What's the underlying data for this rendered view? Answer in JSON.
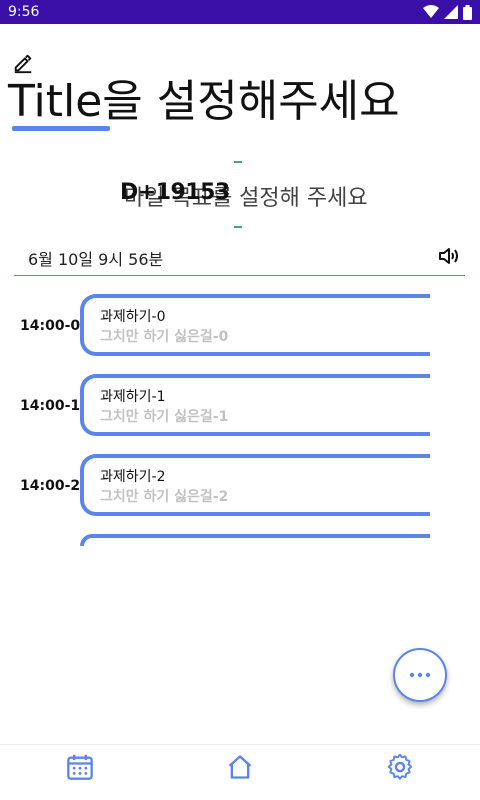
{
  "status_bar": {
    "time": "9:56",
    "icons": [
      "wifi-icon",
      "signal-icon",
      "battery-icon"
    ]
  },
  "header": {
    "edit_icon": "pencil-icon",
    "title": "Title을 설정해주세요"
  },
  "goal": {
    "dday": "D+19153",
    "placeholder": "마일 목표를 설정해 주세요"
  },
  "date_bar": {
    "date": "6월 10일 9시 56분",
    "icon": "speaker-icon"
  },
  "schedule": {
    "items": [
      {
        "time": "14:00-0",
        "title": "과제하기-0",
        "subtitle": "그치만 하기 싫은걸-0"
      },
      {
        "time": "14:00-1",
        "title": "과제하기-1",
        "subtitle": "그치만 하기 싫은걸-1"
      },
      {
        "time": "14:00-2",
        "title": "과제하기-2",
        "subtitle": "그치만 하기 싫은걸-2"
      }
    ]
  },
  "fab": {
    "icon": "more-horizontal-icon"
  },
  "bottom_nav": {
    "items": [
      {
        "icon": "calendar-icon"
      },
      {
        "icon": "home-icon"
      },
      {
        "icon": "gear-icon"
      }
    ]
  },
  "colors": {
    "accent": "#5b84ec",
    "status_bar": "#3a0fa8",
    "subtitle": "#c2c2c2"
  }
}
